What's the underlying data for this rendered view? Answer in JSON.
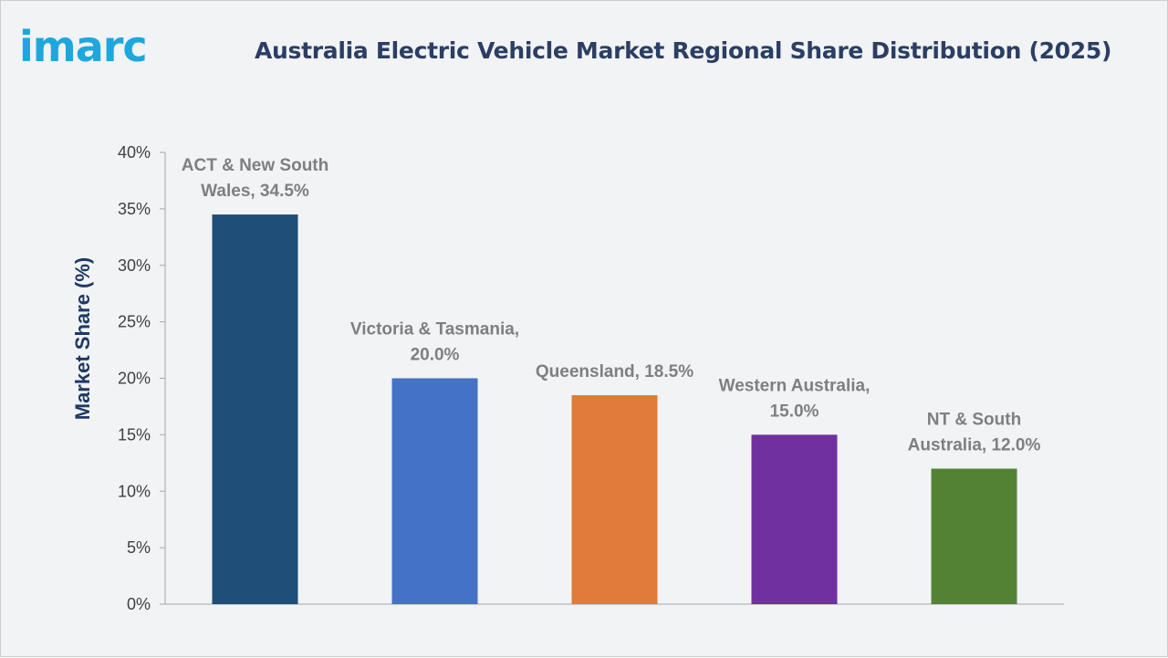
{
  "brand": {
    "logo_text": "imarc",
    "logo_color": "#1ea7dd"
  },
  "chart_data": {
    "type": "bar",
    "title": "Australia Electric Vehicle Market Regional Share Distribution (2025)",
    "xlabel": "",
    "ylabel": "Market Share (%)",
    "ylim": [
      0,
      40
    ],
    "yticks": [
      "0%",
      "5%",
      "10%",
      "15%",
      "20%",
      "25%",
      "30%",
      "35%",
      "40%"
    ],
    "grid": false,
    "categories": [
      "ACT & New South Wales",
      "Victoria & Tasmania",
      "Queensland",
      "Western Australia",
      "NT & South Australia"
    ],
    "values": [
      34.5,
      20.0,
      18.5,
      15.0,
      12.0
    ],
    "data_labels": [
      [
        "ACT & New South",
        "Wales, 34.5%"
      ],
      [
        "Victoria & Tasmania,",
        "20.0%"
      ],
      [
        "Queensland, 18.5%"
      ],
      [
        "Western Australia,",
        "15.0%"
      ],
      [
        "NT & South",
        "Australia, 12.0%"
      ]
    ],
    "colors": [
      "#1f4e79",
      "#4472c4",
      "#e07b39",
      "#7030a0",
      "#548235"
    ]
  }
}
